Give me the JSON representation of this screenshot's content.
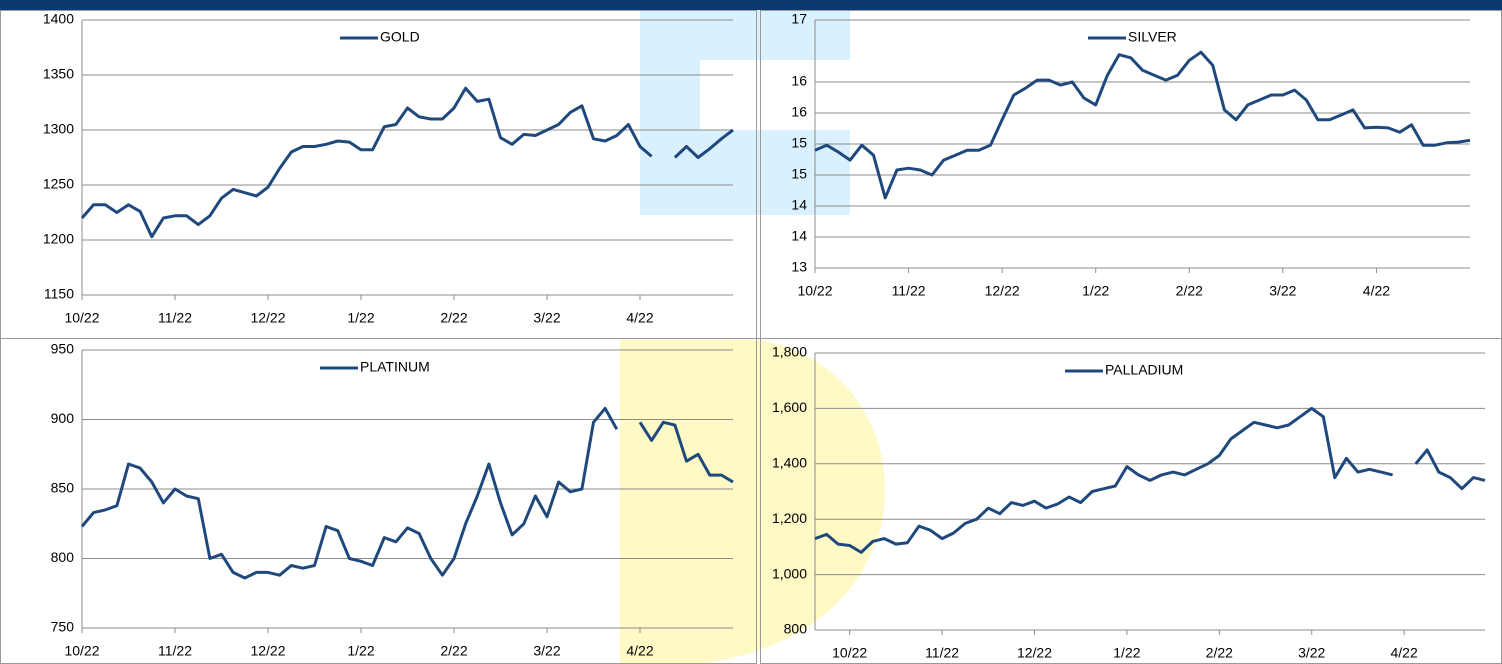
{
  "chart_data": [
    {
      "type": "line",
      "categories": [
        "10/22",
        null,
        null,
        null,
        null,
        null,
        null,
        null,
        "11/22",
        null,
        null,
        null,
        null,
        null,
        null,
        null,
        "12/22",
        null,
        null,
        null,
        null,
        null,
        null,
        null,
        "1/22",
        null,
        null,
        null,
        null,
        null,
        null,
        null,
        "2/22",
        null,
        null,
        null,
        null,
        null,
        null,
        null,
        "3/22",
        null,
        null,
        null,
        null,
        null,
        null,
        null,
        "4/22",
        null,
        null,
        null,
        null,
        null,
        null,
        null,
        null
      ],
      "series": [
        {
          "name": "GOLD",
          "color": "#1f497d",
          "values": [
            1220,
            1232,
            1232,
            1225,
            1232,
            1226,
            1203,
            1220,
            1222,
            1222,
            1214,
            1222,
            1238,
            1246,
            1243,
            1240,
            1248,
            1265,
            1280,
            1285,
            1285,
            1287,
            1290,
            1289,
            1282,
            1282,
            1303,
            1305,
            1320,
            1312,
            1310,
            1310,
            1320,
            1338,
            1326,
            1328,
            1293,
            1287,
            1296,
            1295,
            1300,
            1305,
            1316,
            1322,
            1292,
            1290,
            1295,
            1305,
            1285,
            1276,
            null,
            1275,
            1285,
            1275,
            1283,
            1292,
            1300
          ]
        }
      ],
      "ylim": [
        1150,
        1400
      ],
      "yticks": [
        1150,
        1200,
        1250,
        1300,
        1350,
        1400
      ],
      "grid": true
    },
    {
      "type": "line",
      "categories": [
        "10/22",
        null,
        null,
        null,
        null,
        null,
        null,
        null,
        "11/22",
        null,
        null,
        null,
        null,
        null,
        null,
        null,
        "12/22",
        null,
        null,
        null,
        null,
        null,
        null,
        null,
        "1/22",
        null,
        null,
        null,
        null,
        null,
        null,
        null,
        "2/22",
        null,
        null,
        null,
        null,
        null,
        null,
        null,
        "3/22",
        null,
        null,
        null,
        null,
        null,
        null,
        null,
        "4/22",
        null,
        null,
        null,
        null,
        null,
        null,
        null,
        null
      ],
      "series": [
        {
          "name": "SILVER",
          "color": "#1f497d",
          "values": [
            14.9,
            14.98,
            14.87,
            14.74,
            14.98,
            14.82,
            14.13,
            14.58,
            14.61,
            14.58,
            14.5,
            14.74,
            14.82,
            14.9,
            14.9,
            14.98,
            15.39,
            15.79,
            15.9,
            16.03,
            16.03,
            15.95,
            16.0,
            15.74,
            15.63,
            16.11,
            16.44,
            16.39,
            16.19,
            16.11,
            16.03,
            16.11,
            16.35,
            16.48,
            16.27,
            15.55,
            15.39,
            15.63,
            15.71,
            15.79,
            15.79,
            15.87,
            15.71,
            15.39,
            15.39,
            15.47,
            15.55,
            15.26,
            15.27,
            15.26,
            15.19,
            15.31,
            14.98,
            14.98,
            15.02,
            15.03,
            15.06
          ]
        }
      ],
      "ylim": [
        13,
        17
      ],
      "yticks": [
        13,
        {
          "value": 13.5,
          "label": "14"
        },
        14,
        {
          "value": 14.5,
          "label": "15"
        },
        15,
        {
          "value": 15.5,
          "label": "16"
        },
        16,
        17
      ],
      "grid": true
    },
    {
      "type": "line",
      "categories": [
        "10/22",
        null,
        null,
        null,
        null,
        null,
        null,
        null,
        "11/22",
        null,
        null,
        null,
        null,
        null,
        null,
        null,
        "12/22",
        null,
        null,
        null,
        null,
        null,
        null,
        null,
        "1/22",
        null,
        null,
        null,
        null,
        null,
        null,
        null,
        "2/22",
        null,
        null,
        null,
        null,
        null,
        null,
        null,
        "3/22",
        null,
        null,
        null,
        null,
        null,
        null,
        null,
        "4/22",
        null,
        null,
        null,
        null,
        null,
        null,
        null,
        null
      ],
      "series": [
        {
          "name": "PLATINUM",
          "color": "#1f497d",
          "values": [
            823,
            833,
            835,
            838,
            868,
            865,
            855,
            840,
            850,
            845,
            843,
            800,
            803,
            790,
            786,
            790,
            790,
            788,
            795,
            793,
            795,
            823,
            820,
            800,
            798,
            795,
            815,
            812,
            822,
            818,
            800,
            788,
            800,
            825,
            845,
            868,
            840,
            817,
            825,
            845,
            830,
            855,
            848,
            850,
            898,
            908,
            893,
            null,
            898,
            885,
            898,
            896,
            870,
            875,
            860,
            860,
            855
          ]
        }
      ],
      "ylim": [
        750,
        950
      ],
      "yticks": [
        750,
        800,
        850,
        900,
        950
      ],
      "grid": true
    },
    {
      "type": "line",
      "categories": [
        null,
        null,
        null,
        "10/22",
        null,
        null,
        null,
        null,
        null,
        null,
        null,
        "11/22",
        null,
        null,
        null,
        null,
        null,
        null,
        null,
        "12/22",
        null,
        null,
        null,
        null,
        null,
        null,
        null,
        "1/22",
        null,
        null,
        null,
        null,
        null,
        null,
        null,
        "2/22",
        null,
        null,
        null,
        null,
        null,
        null,
        null,
        "3/22",
        null,
        null,
        null,
        null,
        null,
        null,
        null,
        "4/22",
        null,
        null,
        null,
        null,
        null,
        null,
        null
      ],
      "series": [
        {
          "name": "PALLADIUM",
          "color": "#1f497d",
          "values": [
            1130,
            1145,
            1110,
            1105,
            1080,
            1120,
            1130,
            1110,
            1115,
            1175,
            1160,
            1130,
            1150,
            1185,
            1200,
            1240,
            1220,
            1260,
            1250,
            1265,
            1240,
            1255,
            1280,
            1260,
            1300,
            1310,
            1320,
            1390,
            1360,
            1340,
            1360,
            1370,
            1360,
            1380,
            1400,
            1430,
            1490,
            1520,
            1550,
            1540,
            1530,
            1540,
            1570,
            1600,
            1570,
            1350,
            1420,
            1370,
            1380,
            1370,
            1360,
            null,
            1400,
            1450,
            1370,
            1350,
            1310,
            1350,
            1340
          ]
        }
      ],
      "ylim": [
        800,
        1800
      ],
      "yticks": [
        {
          "value": 800,
          "label": "800"
        },
        {
          "value": 1000,
          "label": "1,000"
        },
        {
          "value": 1200,
          "label": "1,200"
        },
        {
          "value": 1400,
          "label": "1,400"
        },
        {
          "value": 1600,
          "label": "1,600"
        },
        {
          "value": 1800,
          "label": "1,800"
        }
      ],
      "grid": true
    }
  ]
}
